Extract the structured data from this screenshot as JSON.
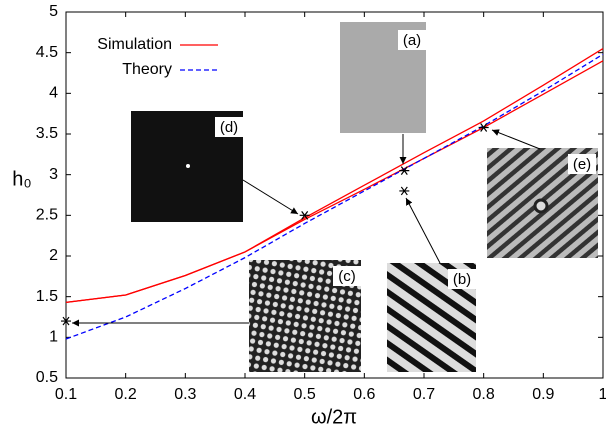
{
  "chart_data": {
    "type": "line",
    "x": [
      0.1,
      0.2,
      0.3,
      0.4,
      0.5,
      0.6,
      0.7,
      0.8,
      0.9,
      1.0
    ],
    "series": [
      {
        "name": "Simulation",
        "color": "#ff0000",
        "dash": false,
        "values": [
          1.43,
          1.52,
          1.76,
          2.05,
          2.47,
          2.87,
          3.27,
          3.66,
          4.1,
          4.55
        ]
      },
      {
        "color": "#ff0000",
        "dash": false,
        "values": [
          1.43,
          1.52,
          1.76,
          2.05,
          2.45,
          2.82,
          3.2,
          3.58,
          3.99,
          4.4
        ]
      },
      {
        "name": "Theory",
        "color": "#0000ff",
        "dash": true,
        "values": [
          0.98,
          1.25,
          1.6,
          1.98,
          2.4,
          2.8,
          3.2,
          3.6,
          4.03,
          4.48
        ]
      }
    ],
    "markers": {
      "color": "#000000",
      "x": [
        0.1,
        0.5,
        0.667,
        0.667,
        0.8
      ],
      "values": [
        1.2,
        2.5,
        3.05,
        2.8,
        3.58
      ]
    },
    "xlabel": "ω/2π",
    "ylabel": "h₀",
    "xlim": [
      0.1,
      1.0
    ],
    "ylim": [
      0.5,
      5
    ],
    "xticks": [
      0.1,
      0.2,
      0.3,
      0.4,
      0.5,
      0.6,
      0.7,
      0.8,
      0.9,
      1
    ],
    "yticks": [
      0.5,
      1,
      1.5,
      2,
      2.5,
      3,
      3.5,
      4,
      4.5,
      5
    ],
    "insets": [
      "(a)",
      "(b)",
      "(c)",
      "(d)",
      "(e)"
    ]
  }
}
